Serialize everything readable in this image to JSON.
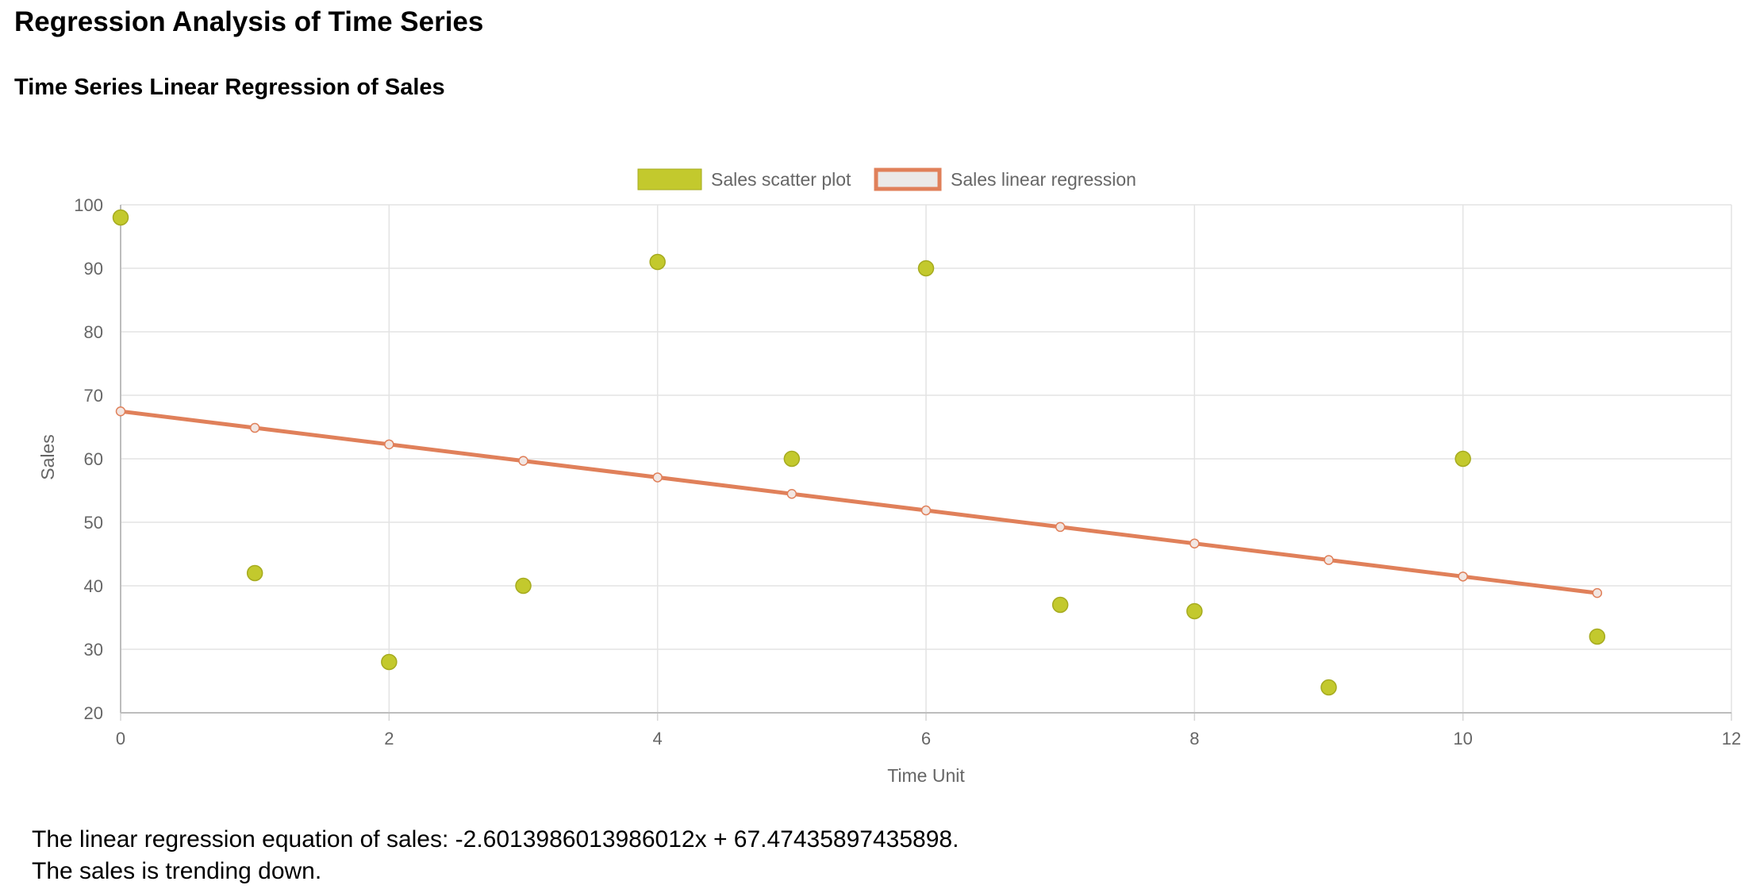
{
  "page": {
    "title": "Regression Analysis of Time Series"
  },
  "chart_heading": "Time Series Linear Regression of Sales",
  "chart_data": {
    "type": "scatter",
    "title": "",
    "xlabel": "Time Unit",
    "ylabel": "Sales",
    "xlim": [
      0,
      12
    ],
    "ylim": [
      20,
      100
    ],
    "x_ticks": [
      0,
      2,
      4,
      6,
      8,
      10,
      12
    ],
    "y_ticks": [
      20,
      30,
      40,
      50,
      60,
      70,
      80,
      90,
      100
    ],
    "grid": true,
    "legend_position": "top-center",
    "series": [
      {
        "name": "Sales scatter plot",
        "type": "scatter",
        "color": "#c3c92d",
        "border_color": "#a6ab1f",
        "x": [
          0,
          1,
          2,
          3,
          4,
          5,
          6,
          7,
          8,
          9,
          10,
          11
        ],
        "y": [
          98,
          42,
          28,
          40,
          91,
          60,
          90,
          37,
          36,
          24,
          60,
          32
        ]
      },
      {
        "name": "Sales linear regression",
        "type": "line",
        "color": "#e0805a",
        "point_fill": "#f2e6e2",
        "x": [
          0,
          1,
          2,
          3,
          4,
          5,
          6,
          7,
          8,
          9,
          10,
          11
        ],
        "y": [
          67.47,
          64.87,
          62.27,
          59.67,
          57.07,
          54.47,
          51.87,
          49.26,
          46.66,
          44.06,
          41.46,
          38.86
        ]
      }
    ]
  },
  "results": {
    "equation_text": "The linear regression equation of sales: -2.6013986013986012x + 67.47435897435898.",
    "trend_text": "The sales is trending down."
  }
}
